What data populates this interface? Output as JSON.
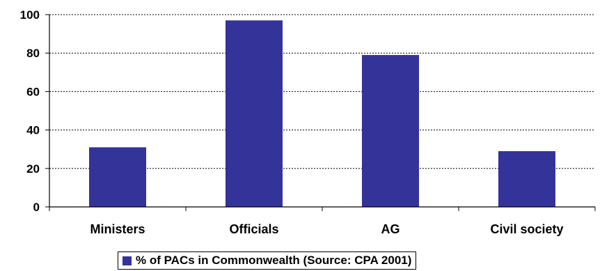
{
  "chart_data": {
    "type": "bar",
    "categories": [
      "Ministers",
      "Officials",
      "AG",
      "Civil society"
    ],
    "series": [
      {
        "name": "% of PACs in Commonwealth (Source: CPA 2001)",
        "values": [
          31,
          97,
          79,
          29
        ]
      }
    ],
    "y_ticks": [
      "0",
      "20",
      "40",
      "60",
      "80",
      "100"
    ],
    "ylim": [
      0,
      100
    ],
    "grid": true,
    "legend_position": "bottom",
    "colors": {
      "bar": "#333399",
      "grid": "#000000",
      "axis": "#000000"
    }
  }
}
